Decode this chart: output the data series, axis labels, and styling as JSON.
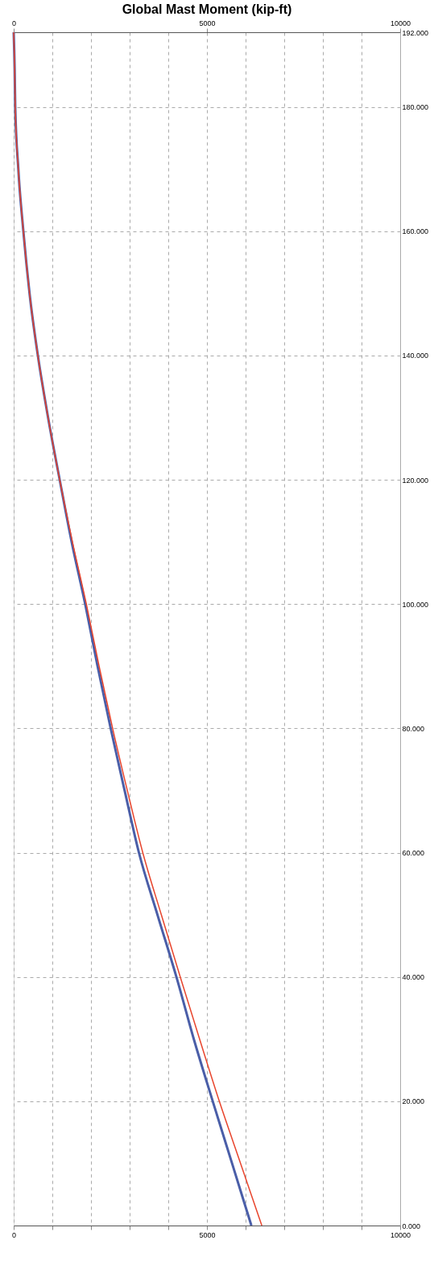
{
  "chart_data": {
    "type": "line",
    "title": "Global Mast Moment (kip-ft)",
    "series": [
      {
        "color": "#4a5ea8",
        "x": [
          6150,
          5650,
          5150,
          4660,
          4210,
          3720,
          3240,
          2870,
          2510,
          2170,
          1850,
          1500,
          1190,
          890,
          625,
          410,
          250,
          120,
          40,
          25,
          0
        ],
        "values": [
          0,
          10,
          20,
          30,
          40,
          50,
          60,
          70,
          80,
          90,
          100,
          110,
          120,
          130,
          140,
          150,
          160,
          170,
          180,
          186,
          192
        ]
      },
      {
        "color": "#e8442c",
        "x": [
          6420,
          5870,
          5320,
          4810,
          4310,
          3820,
          3340,
          2940,
          2560,
          2210,
          1880,
          1520,
          1190,
          890,
          625,
          410,
          250,
          120,
          40,
          25,
          0
        ],
        "values": [
          0,
          10,
          20,
          30,
          40,
          50,
          60,
          70,
          80,
          90,
          100,
          110,
          120,
          130,
          140,
          150,
          160,
          170,
          180,
          186,
          192
        ]
      }
    ],
    "xlim": [
      0,
      10000
    ],
    "xticks": [
      0,
      {
        "value": 1000,
        "label": null
      },
      {
        "value": 2000,
        "label": null
      },
      {
        "value": 3000,
        "label": null
      },
      {
        "value": 4000,
        "label": null
      },
      5000,
      {
        "value": 6000,
        "label": null
      },
      {
        "value": 7000,
        "label": null
      },
      {
        "value": 8000,
        "label": null
      },
      {
        "value": 9000,
        "label": null
      },
      10000
    ],
    "x2lim": [
      0,
      10000
    ],
    "x2ticks": [
      0,
      5000,
      10000
    ],
    "ylim": [
      0,
      192
    ],
    "yticks": [
      {
        "value": 0,
        "label": "0.000"
      },
      {
        "value": 20,
        "label": "20.000"
      },
      {
        "value": 40,
        "label": "40.000"
      },
      {
        "value": 60,
        "label": "60.000"
      },
      {
        "value": 80,
        "label": "80.000"
      },
      {
        "value": 100,
        "label": "100.000"
      },
      {
        "value": 120,
        "label": "120.000"
      },
      {
        "value": 140,
        "label": "140.000"
      },
      {
        "value": 160,
        "label": "160.000"
      },
      {
        "value": 180,
        "label": "180.000"
      },
      {
        "value": 192,
        "label": "192.000"
      }
    ],
    "grid": true,
    "marker": "none",
    "line_style": "solid"
  }
}
